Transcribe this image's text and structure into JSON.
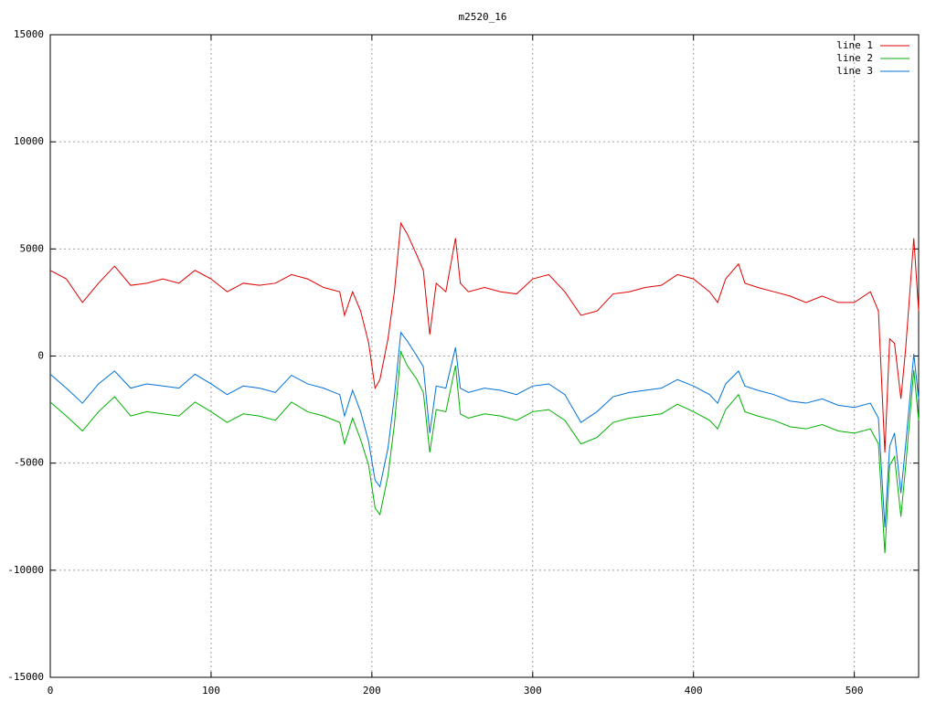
{
  "chart_data": {
    "type": "line",
    "title": "m2520_16",
    "x": [
      0,
      10,
      20,
      30,
      40,
      50,
      60,
      70,
      80,
      90,
      100,
      110,
      120,
      130,
      140,
      150,
      160,
      170,
      180,
      183,
      188,
      193,
      198,
      202,
      205,
      210,
      214,
      218,
      222,
      228,
      232,
      236,
      240,
      246,
      252,
      255,
      260,
      270,
      280,
      290,
      300,
      310,
      320,
      330,
      340,
      350,
      360,
      370,
      380,
      390,
      400,
      410,
      415,
      420,
      428,
      432,
      440,
      450,
      460,
      470,
      480,
      490,
      500,
      510,
      515,
      519,
      522,
      525,
      529,
      532,
      537,
      540
    ],
    "series": [
      {
        "name": "line 1",
        "color": "#e00000",
        "values": [
          4000,
          3600,
          2500,
          3400,
          4200,
          3300,
          3400,
          3600,
          3400,
          4000,
          3600,
          3000,
          3400,
          3300,
          3400,
          3800,
          3600,
          3200,
          3000,
          1900,
          3000,
          2100,
          600,
          -1500,
          -1100,
          800,
          3000,
          6200,
          5700,
          4700,
          4000,
          1000,
          3400,
          3000,
          5500,
          3400,
          3000,
          3200,
          3000,
          2900,
          3600,
          3800,
          3000,
          1900,
          2100,
          2900,
          3000,
          3200,
          3300,
          3800,
          3600,
          3000,
          2500,
          3600,
          4300,
          3400,
          3200,
          3000,
          2800,
          2500,
          2800,
          2500,
          2500,
          3000,
          2100,
          -4500,
          800,
          600,
          -2000,
          400,
          5500,
          2100
        ]
      },
      {
        "name": "line 2",
        "color": "#00b000",
        "values": [
          -2150,
          -2800,
          -3500,
          -2600,
          -1900,
          -2800,
          -2600,
          -2700,
          -2800,
          -2150,
          -2600,
          -3100,
          -2700,
          -2800,
          -3000,
          -2150,
          -2600,
          -2800,
          -3100,
          -4100,
          -2900,
          -3900,
          -5100,
          -7100,
          -7400,
          -5600,
          -3200,
          200,
          -450,
          -1100,
          -1700,
          -4500,
          -2500,
          -2600,
          -450,
          -2700,
          -2900,
          -2700,
          -2800,
          -3000,
          -2600,
          -2500,
          -3000,
          -4100,
          -3800,
          -3100,
          -2900,
          -2800,
          -2700,
          -2250,
          -2600,
          -3000,
          -3400,
          -2500,
          -1800,
          -2600,
          -2800,
          -3000,
          -3300,
          -3400,
          -3200,
          -3500,
          -3600,
          -3400,
          -4100,
          -9200,
          -5100,
          -4700,
          -7500,
          -5100,
          -650,
          -3000
        ]
      },
      {
        "name": "line 3",
        "color": "#0070d8",
        "values": [
          -850,
          -1500,
          -2200,
          -1300,
          -700,
          -1500,
          -1300,
          -1400,
          -1500,
          -850,
          -1300,
          -1800,
          -1400,
          -1500,
          -1700,
          -900,
          -1300,
          -1500,
          -1800,
          -2800,
          -1600,
          -2600,
          -4000,
          -5800,
          -6100,
          -4300,
          -1900,
          1100,
          700,
          0,
          -500,
          -3600,
          -1400,
          -1500,
          400,
          -1500,
          -1700,
          -1500,
          -1600,
          -1800,
          -1400,
          -1300,
          -1800,
          -3100,
          -2600,
          -1900,
          -1700,
          -1600,
          -1500,
          -1100,
          -1400,
          -1800,
          -2200,
          -1300,
          -700,
          -1400,
          -1600,
          -1800,
          -2100,
          -2200,
          -2000,
          -2300,
          -2400,
          -2200,
          -2900,
          -8000,
          -4200,
          -3600,
          -6400,
          -4100,
          100,
          -2000
        ]
      }
    ],
    "xlim": [
      0,
      540
    ],
    "ylim": [
      -15000,
      15000
    ],
    "xticks": [
      0,
      100,
      200,
      300,
      400,
      500
    ],
    "yticks": [
      -15000,
      -10000,
      -5000,
      0,
      5000,
      10000,
      15000
    ],
    "grid": true,
    "legend": "top-right"
  }
}
